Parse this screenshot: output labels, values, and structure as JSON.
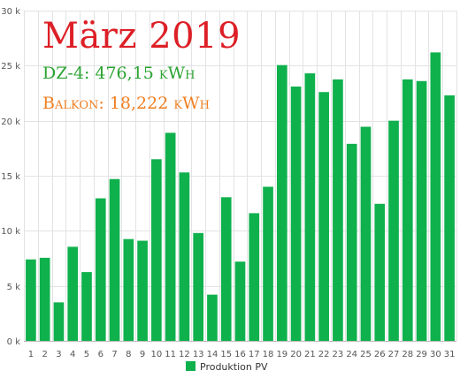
{
  "chart_data": {
    "type": "bar",
    "title": "März 2019",
    "annotations": [
      {
        "id": "dz4",
        "text": "DZ-4: 476,15 kWh",
        "color": "#2aa332"
      },
      {
        "id": "balkon",
        "text": "Balkon: 18,222 kWh",
        "color": "#f07f22"
      }
    ],
    "categories": [
      "1",
      "2",
      "3",
      "4",
      "5",
      "6",
      "7",
      "8",
      "9",
      "10",
      "11",
      "12",
      "13",
      "14",
      "15",
      "16",
      "17",
      "18",
      "19",
      "20",
      "21",
      "22",
      "23",
      "24",
      "25",
      "26",
      "27",
      "28",
      "29",
      "30",
      "31"
    ],
    "series": [
      {
        "name": "Produktion PV",
        "color": "#0fb14d",
        "values": [
          7400,
          7550,
          3500,
          8550,
          6250,
          12950,
          14700,
          9250,
          9100,
          16500,
          18900,
          15300,
          9800,
          4200,
          13050,
          7200,
          11600,
          14000,
          25050,
          23100,
          24300,
          22600,
          23750,
          17900,
          19450,
          12450,
          20000,
          23750,
          23600,
          26200,
          22300
        ]
      }
    ],
    "ylim": [
      0,
      30000
    ],
    "yticks": [
      {
        "value": 0,
        "label": "0 k"
      },
      {
        "value": 5000,
        "label": "5 k"
      },
      {
        "value": 10000,
        "label": "10 k"
      },
      {
        "value": 15000,
        "label": "15 k"
      },
      {
        "value": 20000,
        "label": "20 k"
      },
      {
        "value": 25000,
        "label": "25 k"
      },
      {
        "value": 30000,
        "label": "30 k"
      }
    ],
    "xlabel": "",
    "ylabel": "",
    "grid": true,
    "legend_position": "bottom-center"
  }
}
